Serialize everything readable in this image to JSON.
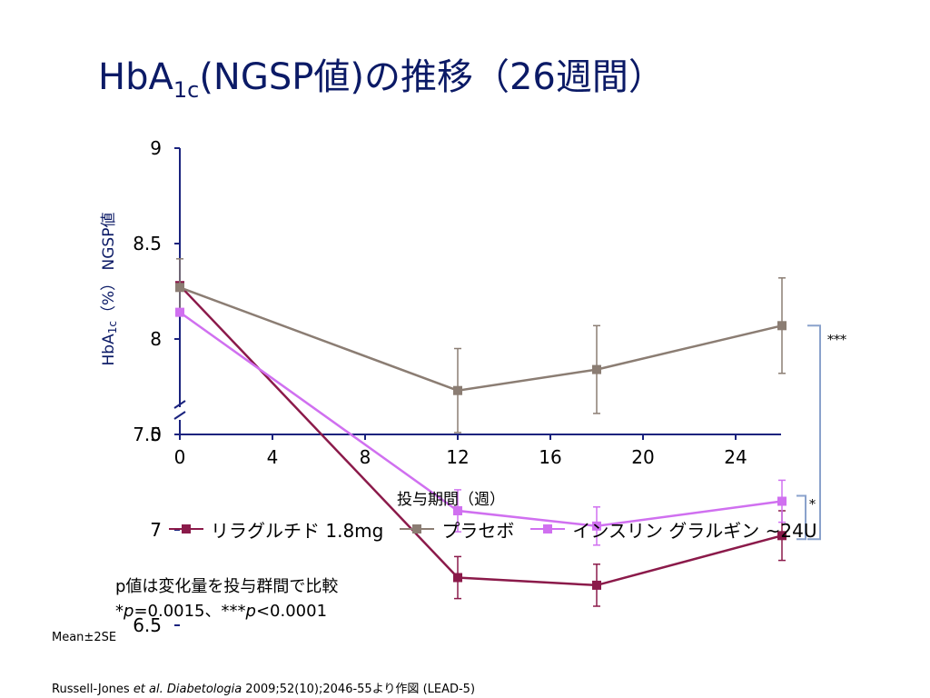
{
  "page": {
    "title_main": "HbA",
    "title_sub": "1c",
    "title_rest": "(NGSP値)の推移（26週間）",
    "ylabel_main": "HbA",
    "ylabel_sub": "1c",
    "ylabel_rest": "（%） NGSP値",
    "xlabel": "投与期間（週）",
    "note_line1": "p値は変化量を投与群間で比較",
    "note_p1_prefix": "*",
    "note_p1_p": "p",
    "note_p1_rest": "=0.0015、***",
    "note_p2_p": "p",
    "note_p2_rest": "<0.0001",
    "mean_label": "Mean±2SE",
    "cite_author": "Russell-Jones ",
    "cite_etal": "et al. Diabetologia",
    "cite_rest": " 2009;52(10);2046-55より作図 (LEAD-5)"
  },
  "legend": [
    {
      "label": "リラグルチド 1.8mg",
      "color": "#8b1a4a"
    },
    {
      "label": "プラセボ",
      "color": "#8b7d73"
    },
    {
      "label": "インスリン グラルギン ~24U",
      "color": "#d070f0"
    }
  ],
  "chart_data": {
    "type": "line",
    "x": [
      0,
      12,
      18,
      26
    ],
    "xticks": [
      0,
      4,
      8,
      12,
      16,
      20,
      24
    ],
    "yticks": [
      "9",
      "8.5",
      "8",
      "7.5",
      "7",
      "6.5",
      "0"
    ],
    "ylim": [
      6.5,
      9
    ],
    "axis_break": true,
    "series": [
      {
        "name": "リラグルチド 1.8mg",
        "color": "#8b1a4a",
        "values": [
          8.28,
          6.75,
          6.71,
          6.97
        ],
        "err": [
          0.0,
          0.11,
          0.11,
          0.13
        ]
      },
      {
        "name": "プラセボ",
        "color": "#8b7d73",
        "values": [
          8.27,
          7.73,
          7.84,
          8.07
        ],
        "err": [
          0.15,
          0.22,
          0.23,
          0.25
        ]
      },
      {
        "name": "インスリン グラルギン ~24U",
        "color": "#d070f0",
        "values": [
          8.14,
          7.1,
          7.02,
          7.15
        ],
        "err": [
          0.0,
          0.11,
          0.1,
          0.11
        ]
      }
    ],
    "significance": [
      "***",
      "*"
    ],
    "bracket_color": "#8aa2cc"
  }
}
